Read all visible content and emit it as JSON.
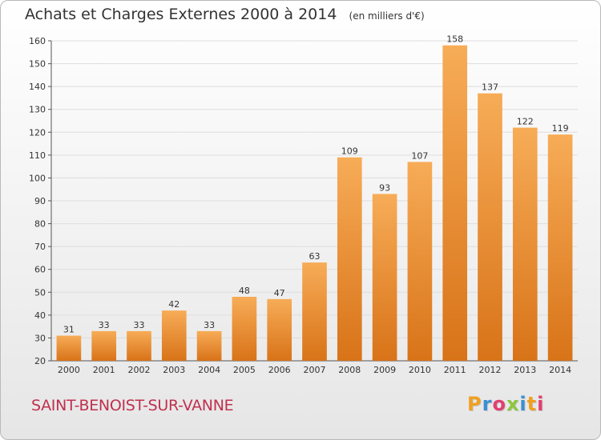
{
  "title": "Achats et Charges Externes 2000 à 2014",
  "unit_label": "(en milliers d'€)",
  "commune": "SAINT-BENOIST-SUR-VANNE",
  "logo": {
    "text": "Proxiti",
    "letter_colors": [
      "#f0a020",
      "#3a8fd0",
      "#e04070",
      "#8cc63f",
      "#3a8fd0",
      "#f0a020",
      "#e04070"
    ]
  },
  "colors": {
    "bar_light": "#f7ac57",
    "bar_dark": "#d87318",
    "grid": "#dddddd",
    "commune": "#c0304f"
  },
  "chart_data": {
    "type": "bar",
    "categories": [
      "2000",
      "2001",
      "2002",
      "2003",
      "2004",
      "2005",
      "2006",
      "2007",
      "2008",
      "2009",
      "2010",
      "2011",
      "2012",
      "2013",
      "2014"
    ],
    "values": [
      31,
      33,
      33,
      42,
      33,
      48,
      47,
      63,
      109,
      93,
      107,
      158,
      137,
      122,
      119
    ],
    "ylim": [
      20,
      160
    ],
    "yticks": [
      20,
      30,
      40,
      50,
      60,
      70,
      80,
      90,
      100,
      110,
      120,
      130,
      140,
      150,
      160
    ],
    "grid": true
  }
}
